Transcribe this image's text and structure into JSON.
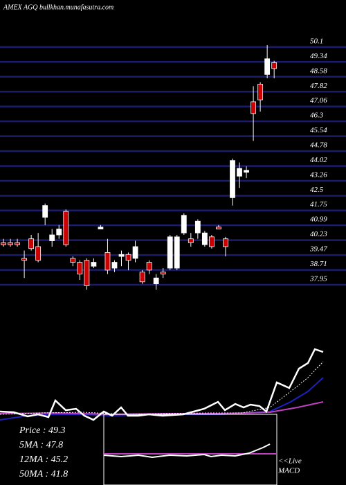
{
  "chart_data": {
    "type": "candlestick",
    "title": "AMEX AGQ bullkhan.munafasutra.com",
    "open": [
      40.1,
      40.1,
      40.1,
      39.3,
      40.3,
      39.9,
      41.4,
      40.2,
      40.5,
      41.7,
      39.3,
      39.1,
      39.2,
      38.9,
      40.8,
      39.6,
      38.8,
      39.4,
      39.5,
      39.3,
      38.6,
      39.1,
      38.0,
      38.6,
      38.8,
      38.8,
      40.6,
      40.3,
      40.6,
      40.0,
      40.4,
      40.9,
      40.3,
      42.4,
      43.5,
      43.7,
      47.3,
      48.2,
      48.7,
      49.3
    ],
    "high": [
      40.3,
      40.3,
      40.3,
      39.7,
      40.5,
      40.6,
      42.1,
      40.8,
      41.0,
      41.8,
      39.4,
      39.2,
      39.3,
      39.3,
      41.0,
      40.3,
      39.2,
      39.7,
      39.6,
      40.2,
      38.7,
      39.2,
      38.5,
      38.8,
      40.5,
      40.5,
      41.6,
      40.6,
      41.3,
      40.7,
      40.5,
      41.0,
      40.4,
      44.4,
      44.2,
      44.0,
      48.1,
      48.3,
      50.2,
      49.4
    ],
    "low": [
      39.9,
      39.9,
      39.9,
      38.3,
      39.7,
      39.1,
      41.0,
      39.9,
      40.3,
      39.9,
      38.9,
      38.2,
      37.7,
      38.8,
      40.8,
      38.5,
      38.6,
      38.9,
      38.7,
      39.1,
      38.0,
      38.5,
      37.7,
      38.3,
      38.7,
      38.7,
      40.5,
      39.9,
      40.3,
      39.9,
      39.8,
      40.8,
      39.4,
      42.0,
      42.9,
      43.4,
      45.3,
      46.8,
      48.5,
      48.5
    ],
    "close": [
      40.0,
      40.0,
      40.0,
      39.2,
      39.8,
      39.2,
      42.0,
      40.5,
      40.8,
      40.0,
      39.1,
      38.5,
      37.9,
      39.1,
      40.9,
      38.7,
      39.1,
      39.5,
      39.2,
      39.9,
      38.1,
      38.7,
      38.3,
      38.5,
      40.4,
      40.4,
      41.5,
      40.1,
      41.2,
      40.6,
      39.9,
      40.8,
      39.9,
      44.3,
      43.9,
      43.8,
      46.7,
      47.4,
      49.5,
      49.0
    ],
    "up_color": "#ffffff",
    "down_color": "#cc0000",
    "ylim": [
      36.5,
      51.9
    ],
    "yticks": [
      37.95,
      38.71,
      39.47,
      40.23,
      40.99,
      41.75,
      42.5,
      43.26,
      44.02,
      44.78,
      45.54,
      46.3,
      47.06,
      47.82,
      48.58,
      49.34,
      50.1
    ],
    "grid_color": "#1c1c6c",
    "info": [
      "Price : 49.3",
      "5MA : 47.8",
      "12MA : 45.2",
      "50MA : 41.8"
    ],
    "live_label": "<<Live",
    "macd_label": "MACD"
  }
}
